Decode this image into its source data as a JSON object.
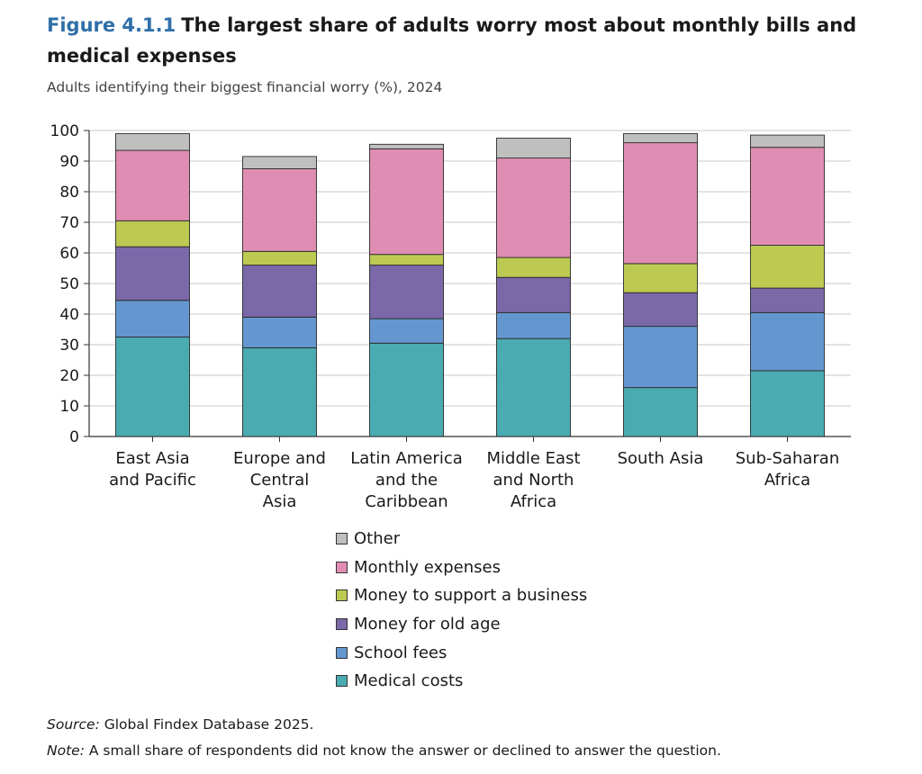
{
  "header": {
    "figure_number": "Figure 4.1.1",
    "title": "The largest share of adults worry most about monthly bills and medical expenses",
    "subtitle": "Adults identifying their biggest financial worry (%), 2024"
  },
  "footer": {
    "source_label": "Source:",
    "source_text": " Global Findex Database 2025.",
    "note_label": "Note:",
    "note_text": " A small share of respondents did not know the answer or declined to answer the question."
  },
  "chart_data": {
    "type": "bar",
    "stacked": true,
    "categories": [
      [
        "East Asia",
        "and Pacific"
      ],
      [
        "Europe and",
        "Central",
        "Asia"
      ],
      [
        "Latin America",
        "and the",
        "Caribbean"
      ],
      [
        "Middle East",
        "and North",
        "Africa"
      ],
      [
        "South Asia"
      ],
      [
        "Sub-Saharan",
        "Africa"
      ]
    ],
    "ylim": [
      0,
      100
    ],
    "yticks": [
      0,
      10,
      20,
      30,
      40,
      50,
      60,
      70,
      80,
      90,
      100
    ],
    "grid": true,
    "legend_position": "bottom",
    "series": [
      {
        "name": "Medical costs",
        "color": "#4aabb0",
        "values": [
          32.5,
          29,
          30.5,
          32,
          16,
          21.5
        ]
      },
      {
        "name": "School fees",
        "color": "#6497cf",
        "values": [
          12,
          10,
          8,
          8.5,
          20,
          19
        ]
      },
      {
        "name": "Money for old age",
        "color": "#7b68a8",
        "values": [
          17.5,
          17,
          17.5,
          11.5,
          11,
          8
        ]
      },
      {
        "name": "Money to support a business",
        "color": "#bcca52",
        "values": [
          8.5,
          4.5,
          3.5,
          6.5,
          9.5,
          14
        ]
      },
      {
        "name": "Monthly expenses",
        "color": "#e08db3",
        "values": [
          23,
          27,
          34.5,
          32.5,
          39.5,
          32
        ]
      },
      {
        "name": "Other",
        "color": "#bfbfbf",
        "values": [
          5.5,
          4,
          1.5,
          6.5,
          3,
          4
        ]
      }
    ]
  }
}
